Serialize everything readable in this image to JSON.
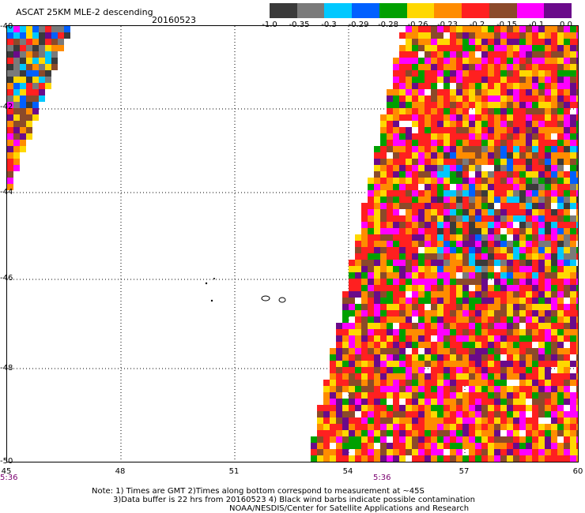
{
  "header": {
    "title": "ASCAT 25KM MLE-2 descending",
    "date": "20160523"
  },
  "legend": {
    "labels": [
      "-1.0",
      "-0.35",
      "-0.3",
      "-0.29",
      "-0.28",
      "-0.26",
      "-0.23",
      "-0.2",
      "-0.15",
      "-0.1",
      "0.0"
    ],
    "colors": [
      "#3a3a3a",
      "#7a7a7a",
      "#00c8ff",
      "#0060ff",
      "#00a000",
      "#ffd800",
      "#ff8c00",
      "#ff2020",
      "#8b4a2a",
      "#ff00ff",
      "#6a0a8a"
    ]
  },
  "map": {
    "lat_labels": [
      "-40",
      "-42",
      "-44",
      "-46",
      "-48",
      "-50"
    ],
    "lon_labels": [
      "45",
      "48",
      "51",
      "54",
      "57",
      "60"
    ],
    "lat_range": [
      -50,
      -40
    ],
    "lon_range": [
      45,
      60
    ],
    "grid": true,
    "time_labels": [
      "5:36",
      "5:36"
    ]
  },
  "notes": {
    "line1": "Note: 1) Times are GMT 2)Times along bottom correspond to measurement at ~45S",
    "line2": "3)Data buffer is 22 hrs from 20160523 4) Black wind barbs indicate possible contamination",
    "line3": "NOAA/NESDIS/Center for Satellite Applications and Research"
  }
}
